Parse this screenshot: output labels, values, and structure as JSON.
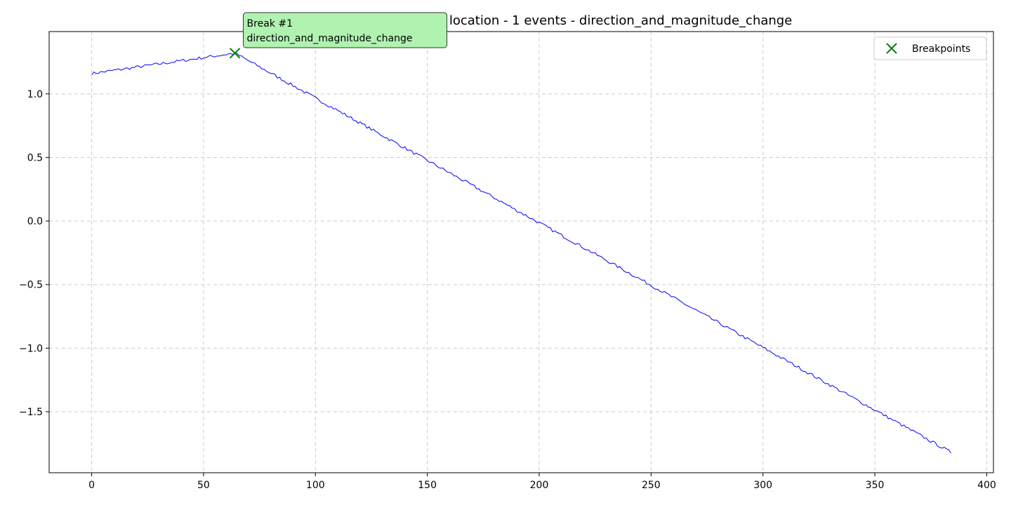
{
  "chart_data": {
    "type": "line",
    "title": "Trend Shift (single) - Beginning location - 1 events - direction_and_magnitude_change",
    "xlabel": "",
    "ylabel": "",
    "xlim": [
      -19,
      403
    ],
    "ylim": [
      -1.98,
      1.49
    ],
    "x_ticks": [
      0,
      50,
      100,
      150,
      200,
      250,
      300,
      350,
      400
    ],
    "y_ticks": [
      -1.5,
      -1.0,
      -0.5,
      0.0,
      0.5,
      1.0
    ],
    "x_tick_labels": [
      "0",
      "50",
      "100",
      "150",
      "200",
      "250",
      "300",
      "350",
      "400"
    ],
    "y_tick_labels": [
      "−1.5",
      "−1.0",
      "−0.5",
      "0.0",
      "0.5",
      "1.0"
    ],
    "grid": true,
    "legend_position": "top-right",
    "series": [
      {
        "name": "",
        "color": "#0000ff",
        "shape": {
          "x_start": 0,
          "x_end": 384,
          "break_x": 64,
          "start_value": 1.16,
          "break_value": 1.32,
          "end_value": -1.82,
          "noise_amplitude": 0.012
        }
      }
    ],
    "breakpoints": {
      "legend_label": "Breakpoints",
      "marker": "x",
      "color": "#008000",
      "points": [
        {
          "x": 64,
          "y": 1.32,
          "label_line1": "Break #1",
          "label_line2": "direction_and_magnitude_change"
        }
      ]
    },
    "annotation_box_color": "#b0f2b0",
    "grid_color": "#cccccc"
  }
}
